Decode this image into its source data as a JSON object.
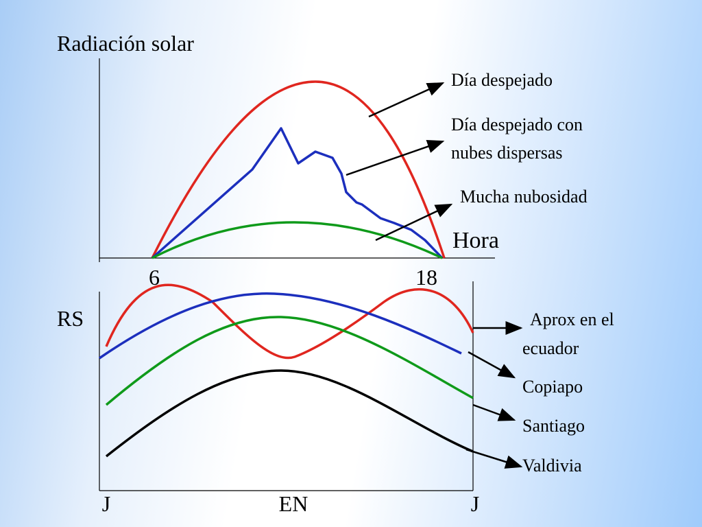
{
  "top_chart": {
    "y_label": "Radiación solar",
    "x_label": "Hora",
    "x_ticks": [
      "6",
      "18"
    ],
    "curves": [
      {
        "label_lines": [
          "Día despejado"
        ]
      },
      {
        "label_lines": [
          "Día despejado con",
          "nubes dispersas"
        ]
      },
      {
        "label_lines": [
          "Mucha nubosidad"
        ]
      }
    ]
  },
  "bottom_chart": {
    "y_label": "RS",
    "x_ticks": [
      "J",
      "EN",
      "J"
    ],
    "curves": [
      {
        "label_lines": [
          "Aprox en el",
          "ecuador"
        ]
      },
      {
        "label_lines": [
          "Copiapo"
        ]
      },
      {
        "label_lines": [
          "Santiago"
        ]
      },
      {
        "label_lines": [
          "Valdivia"
        ]
      }
    ]
  }
}
